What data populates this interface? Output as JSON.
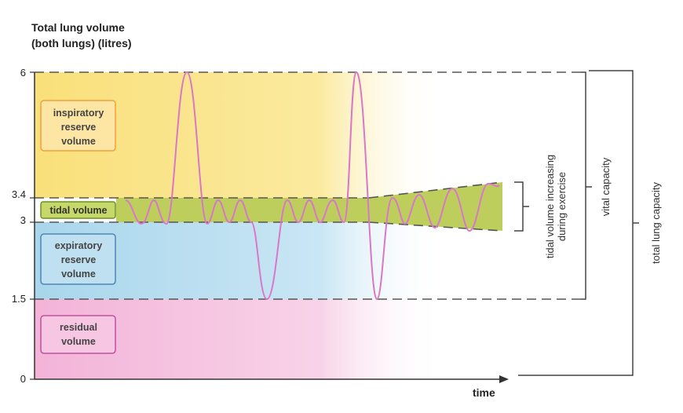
{
  "diagram": {
    "y_axis_title_line1": "Total lung volume",
    "y_axis_title_line2": "(both lungs) (litres)",
    "x_axis_label": "time",
    "y_ticks": [
      "6",
      "3.4",
      "3",
      "1.5",
      "0"
    ],
    "regions": {
      "inspiratory": [
        "inspiratory",
        "reserve",
        "volume"
      ],
      "tidal": "tidal volume",
      "expiratory": [
        "expiratory",
        "reserve",
        "volume"
      ],
      "residual": [
        "residual",
        "volume"
      ]
    },
    "brackets": {
      "exercise": [
        "tidal volume increasing",
        "during exercise"
      ],
      "vital_capacity": "vital capacity",
      "total_lung_capacity": "total lung capacity"
    },
    "colors": {
      "inspiratory": "#f9e07a",
      "tidal": "#b6c94a",
      "expiratory": "#a9d6ec",
      "residual": "#f3b3d8",
      "trace": "#d977c8",
      "inspiratory_box": "#f2a040",
      "tidal_box": "#6e8f22",
      "expiratory_box": "#4d86b8",
      "residual_box": "#c0509f"
    }
  }
}
